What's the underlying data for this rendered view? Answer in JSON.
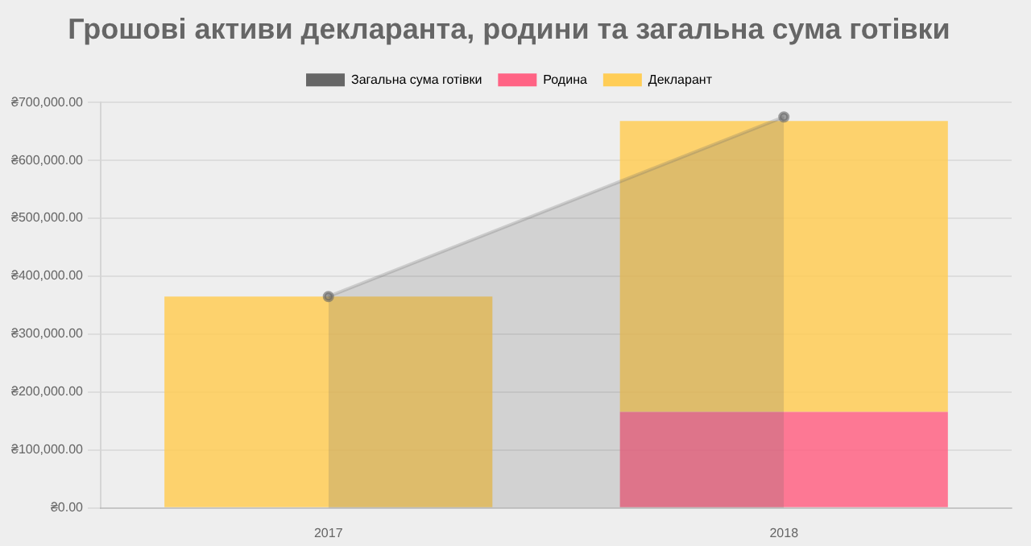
{
  "chart_data": {
    "type": "bar",
    "title": "Грошові активи декларанта, родини та загальна сума готівки",
    "categories": [
      "2017",
      "2018"
    ],
    "legend": "top",
    "grid": "y",
    "series": [
      {
        "name": "Загальна сума готівки",
        "type": "area",
        "color": "#666666",
        "values": [
          365000,
          675000
        ]
      },
      {
        "name": "Родина",
        "color": "#ff6384",
        "values": [
          0,
          166000
        ]
      },
      {
        "name": "Декларант",
        "color": "#ffcd56",
        "base": [
          0,
          166000
        ],
        "values": [
          365000,
          502000
        ]
      }
    ],
    "ylim": [
      0,
      700000
    ],
    "yticks": [
      {
        "value": 0,
        "label": "₴0.00"
      },
      {
        "value": 100000,
        "label": "₴100,000.00"
      },
      {
        "value": 200000,
        "label": "₴200,000.00"
      },
      {
        "value": 300000,
        "label": "₴300,000.00"
      },
      {
        "value": 400000,
        "label": "₴400,000.00"
      },
      {
        "value": 500000,
        "label": "₴500,000.00"
      },
      {
        "value": 600000,
        "label": "₴600,000.00"
      },
      {
        "value": 700000,
        "label": "₴700,000.00"
      }
    ]
  }
}
